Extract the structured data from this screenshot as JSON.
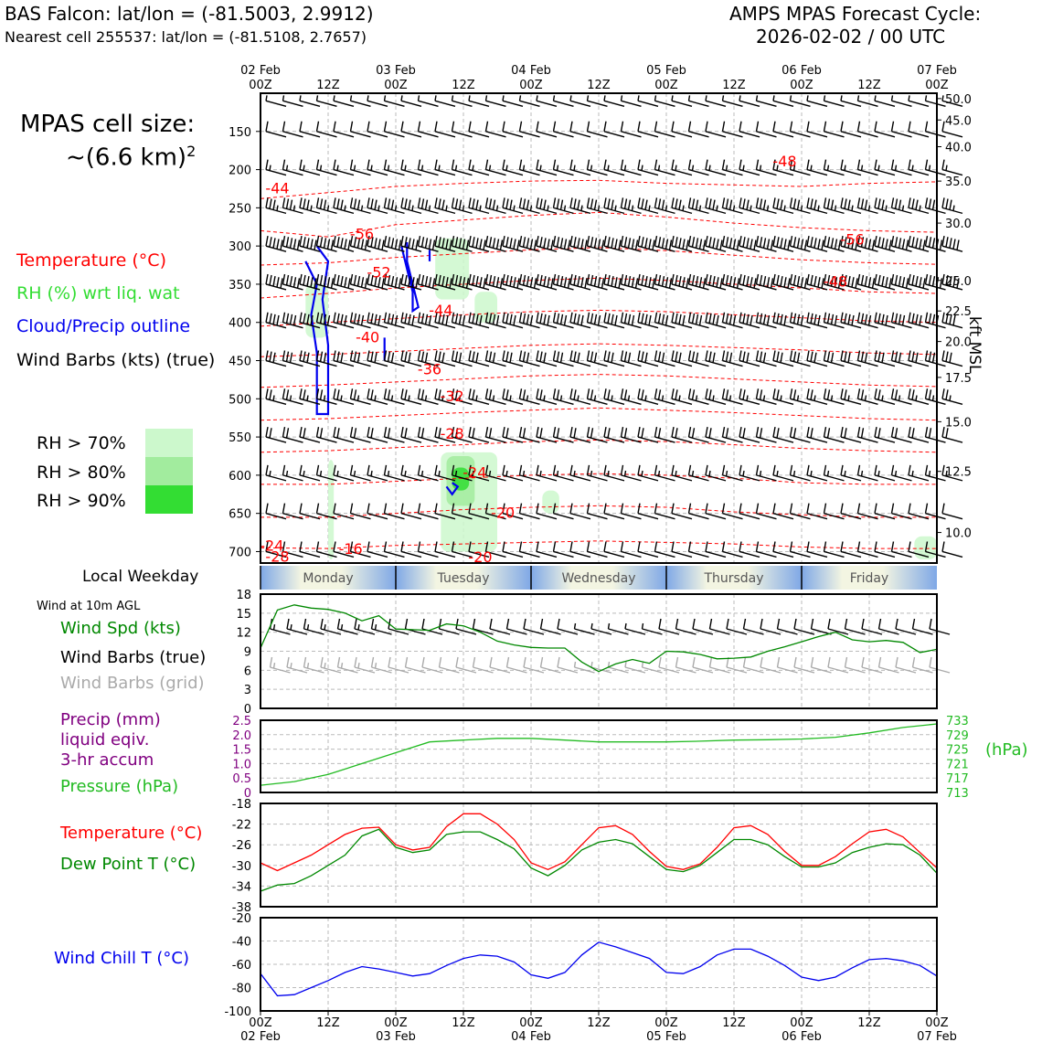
{
  "header": {
    "station_line": "BAS Falcon: lat/lon = (-81.5003, 2.9912)",
    "nearest_line": "Nearest cell 255537: lat/lon = (-81.5108, 2.7657)",
    "cycle_line1": "AMPS MPAS Forecast Cycle:",
    "cycle_line2": "2026-02-02 / 00 UTC"
  },
  "cell_size": {
    "line1": "MPAS cell size:",
    "line2": "~(6.6 km)",
    "sup": "2"
  },
  "legend": {
    "temperature": {
      "label": "Temperature (°C)",
      "color": "#ff0000"
    },
    "rh": {
      "label": "RH (%) wrt liq. wat",
      "color": "#33dd33"
    },
    "cloud": {
      "label": "Cloud/Precip outline",
      "color": "#0000ee"
    },
    "wind": {
      "label": "Wind Barbs (kts) (true)",
      "color": "#000000"
    },
    "rh70": {
      "label": "RH > 70%",
      "color": "#ccf8cc"
    },
    "rh80": {
      "label": "RH > 80%",
      "color": "#a2ec9e"
    },
    "rh90": {
      "label": "RH > 90%",
      "color": "#33dd33"
    }
  },
  "local_weekday_label": "Local Weekday",
  "days": [
    "Monday",
    "Tuesday",
    "Wednesday",
    "Thursday",
    "Friday"
  ],
  "wind10m": {
    "title": "Wind at 10m AGL",
    "spd_label": "Wind Spd (kts)",
    "barbs_true_label": "Wind Barbs (true)",
    "barbs_grid_label": "Wind Barbs (grid)"
  },
  "precip_panel": {
    "precip_label1": "Precip (mm)",
    "precip_label2": "liquid eqiv.",
    "precip_label3": "3-hr accum",
    "pressure_label": "Pressure (hPa)",
    "hpa_unit": "(hPa)"
  },
  "temp_panel": {
    "temp_label": "Temperature (°C)",
    "dew_label": "Dew Point T (°C)"
  },
  "chill_panel": {
    "label": "Wind Chill T (°C)"
  },
  "chart_data": [
    {
      "id": "cross_section",
      "type": "heatmap",
      "x_hours": [
        0,
        120
      ],
      "ylabel_right": "kft MSL",
      "pressure_ticks": [
        "150",
        "200",
        "250",
        "300",
        "350",
        "400",
        "450",
        "500",
        "550",
        "600",
        "650",
        "700"
      ],
      "pressure_levels": [
        150,
        200,
        250,
        300,
        350,
        400,
        450,
        500,
        550,
        600,
        650,
        700
      ],
      "kft_ticks": [
        "50.0",
        "45.0",
        "40.0",
        "35.0",
        "30.0",
        "25.0",
        "22.5",
        "20.0",
        "17.5",
        "15.0",
        "12.5",
        "10.0"
      ],
      "kft_pressure": [
        107,
        135,
        170,
        215,
        270,
        345,
        385,
        425,
        472,
        530,
        595,
        675
      ],
      "time_ticks_top_date": [
        "02 Feb",
        "",
        "03 Feb",
        "",
        "04 Feb",
        "",
        "05 Feb",
        "",
        "06 Feb",
        "",
        "07 Feb"
      ],
      "time_ticks_top_hour": [
        "00Z",
        "12Z",
        "00Z",
        "12Z",
        "00Z",
        "12Z",
        "00Z",
        "12Z",
        "00Z",
        "12Z",
        "00Z"
      ],
      "temperature_labels": [
        {
          "text": "-44",
          "t": 3,
          "p": 225
        },
        {
          "text": "-48",
          "t": 93,
          "p": 190
        },
        {
          "text": "-56",
          "t": 18,
          "p": 285
        },
        {
          "text": "-56",
          "t": 105,
          "p": 292
        },
        {
          "text": "-52",
          "t": 21,
          "p": 335
        },
        {
          "text": "-48",
          "t": 102,
          "p": 347
        },
        {
          "text": "-44",
          "t": 32,
          "p": 385
        },
        {
          "text": "-40",
          "t": 19,
          "p": 420
        },
        {
          "text": "-36",
          "t": 30,
          "p": 462
        },
        {
          "text": "-32",
          "t": 34,
          "p": 497
        },
        {
          "text": "-28",
          "t": 34,
          "p": 546
        },
        {
          "text": "-24",
          "t": 38,
          "p": 597
        },
        {
          "text": "-20",
          "t": 43,
          "p": 650
        },
        {
          "text": "-16",
          "t": 16,
          "p": 697
        },
        {
          "text": "-24",
          "t": 2,
          "p": 693
        },
        {
          "text": "-28",
          "t": 3,
          "p": 707
        },
        {
          "text": "-20",
          "t": 39,
          "p": 708
        }
      ],
      "temperature_contours_p_at_t": {
        "t": [
          0,
          12,
          24,
          36,
          48,
          60,
          72,
          84,
          96,
          108,
          120
        ],
        "lines": [
          [
            238,
            230,
            222,
            218,
            215,
            214,
            218,
            220,
            222,
            218,
            216
          ],
          [
            280,
            288,
            272,
            266,
            260,
            256,
            262,
            270,
            276,
            280,
            282
          ],
          [
            325,
            322,
            315,
            310,
            305,
            302,
            306,
            312,
            318,
            322,
            324
          ],
          [
            368,
            362,
            355,
            350,
            345,
            342,
            345,
            350,
            355,
            360,
            362
          ],
          [
            405,
            400,
            395,
            390,
            386,
            384,
            386,
            390,
            394,
            398,
            400
          ],
          [
            445,
            442,
            438,
            434,
            430,
            428,
            430,
            433,
            436,
            440,
            442
          ],
          [
            485,
            482,
            478,
            474,
            470,
            468,
            470,
            474,
            478,
            482,
            484
          ],
          [
            528,
            526,
            522,
            518,
            515,
            512,
            515,
            518,
            522,
            526,
            528
          ],
          [
            570,
            568,
            564,
            560,
            556,
            554,
            556,
            560,
            565,
            568,
            570
          ],
          [
            612,
            612,
            608,
            604,
            600,
            598,
            600,
            604,
            610,
            612,
            612
          ],
          [
            655,
            655,
            650,
            645,
            642,
            640,
            642,
            648,
            652,
            655,
            655
          ],
          [
            695,
            696,
            692,
            690,
            688,
            686,
            688,
            690,
            694,
            696,
            696
          ]
        ]
      },
      "rh_patches": [
        {
          "level": 70,
          "t0": 31,
          "t1": 37,
          "p0": 290,
          "p1": 370
        },
        {
          "level": 70,
          "t0": 38,
          "t1": 42,
          "p0": 360,
          "p1": 400
        },
        {
          "level": 70,
          "t0": 12,
          "t1": 13,
          "p0": 580,
          "p1": 710
        },
        {
          "level": 70,
          "t0": 8,
          "t1": 12,
          "p0": 350,
          "p1": 420
        },
        {
          "level": 70,
          "t0": 32,
          "t1": 42,
          "p0": 570,
          "p1": 700
        },
        {
          "level": 80,
          "t0": 33,
          "t1": 38,
          "p0": 575,
          "p1": 640
        },
        {
          "level": 90,
          "t0": 34,
          "t1": 37,
          "p0": 590,
          "p1": 620
        },
        {
          "level": 70,
          "t0": 50,
          "t1": 53,
          "p0": 620,
          "p1": 650
        },
        {
          "level": 70,
          "t0": 116,
          "t1": 120,
          "p0": 680,
          "p1": 710
        }
      ],
      "cloud_outlines": [
        {
          "points": [
            [
              8,
              320
            ],
            [
              10,
              350
            ],
            [
              9,
              390
            ],
            [
              10,
              440
            ],
            [
              10,
              520
            ],
            [
              12,
              520
            ],
            [
              12,
              430
            ],
            [
              11,
              370
            ],
            [
              12,
              320
            ],
            [
              10,
              300
            ]
          ]
        },
        {
          "points": [
            [
              25,
              300
            ],
            [
              26,
              330
            ],
            [
              27,
              360
            ],
            [
              27,
              385
            ],
            [
              28,
              380
            ],
            [
              27,
              350
            ],
            [
              26,
              320
            ],
            [
              26,
              295
            ]
          ]
        },
        {
          "points": [
            [
              34,
              610
            ],
            [
              35,
              615
            ],
            [
              34,
              625
            ],
            [
              33,
              615
            ]
          ]
        },
        {
          "points": [
            [
              22,
              420
            ],
            [
              22,
              450
            ]
          ]
        },
        {
          "points": [
            [
              30,
              305
            ],
            [
              30,
              320
            ]
          ]
        }
      ],
      "barb_levels": [
        110,
        150,
        200,
        250,
        300,
        350,
        400,
        450,
        500,
        550,
        600,
        650,
        700
      ],
      "barb_speed_by_level": [
        5,
        10,
        15,
        35,
        55,
        50,
        40,
        30,
        25,
        20,
        15,
        10,
        10
      ],
      "barb_dir_by_level": [
        280,
        285,
        280,
        270,
        265,
        265,
        265,
        265,
        270,
        270,
        275,
        280,
        300
      ]
    },
    {
      "id": "wind10m",
      "type": "line",
      "ylim": [
        0,
        18
      ],
      "yticks": [
        "0",
        "3",
        "6",
        "9",
        "12",
        "15",
        "18"
      ],
      "x_hours": [
        0,
        3,
        6,
        9,
        12,
        15,
        18,
        21,
        24,
        27,
        30,
        33,
        36,
        39,
        42,
        45,
        48,
        51,
        54,
        57,
        60,
        63,
        66,
        69,
        72,
        75,
        78,
        81,
        84,
        87,
        90,
        93,
        96,
        99,
        102,
        105,
        108,
        111,
        114,
        117,
        120
      ],
      "series": [
        {
          "name": "Wind Spd (kts)",
          "color": "#008800",
          "values": [
            9.5,
            15.5,
            16.3,
            15.8,
            15.6,
            15.0,
            13.8,
            14.6,
            12.5,
            12.4,
            12.3,
            13.3,
            13.0,
            12.0,
            10.6,
            10.0,
            9.6,
            9.5,
            9.5,
            7.3,
            5.8,
            7.0,
            7.7,
            7.1,
            9.0,
            8.9,
            8.5,
            7.8,
            7.9,
            8.1,
            9.0,
            9.7,
            10.5,
            11.3,
            12.0,
            10.8,
            10.5,
            10.7,
            10.4,
            8.8,
            9.3
          ]
        }
      ],
      "barb_speed_true": [
        10,
        15,
        15,
        15,
        15,
        15,
        15,
        15,
        10,
        10,
        10,
        10,
        10,
        10,
        10,
        10,
        10,
        10,
        10,
        5,
        5,
        5,
        5,
        5,
        10,
        10,
        10,
        10,
        10,
        10,
        10,
        10,
        10,
        10,
        10,
        10,
        10,
        10,
        10,
        10,
        10
      ],
      "barb_speed_grid": [
        10,
        15,
        15,
        15,
        15,
        15,
        15,
        15,
        10,
        10,
        10,
        10,
        10,
        10,
        10,
        10,
        10,
        10,
        10,
        5,
        5,
        5,
        5,
        5,
        10,
        10,
        10,
        10,
        10,
        10,
        10,
        10,
        10,
        10,
        10,
        10,
        10,
        10,
        10,
        10,
        10
      ]
    },
    {
      "id": "precip_pressure",
      "type": "line",
      "ylim_left": [
        0,
        2.5
      ],
      "yticks_left": [
        "0",
        "0.5",
        "1.0",
        "1.5",
        "2.0",
        "2.5"
      ],
      "ylim_right": [
        713,
        733
      ],
      "yticks_right": [
        "713",
        "717",
        "721",
        "725",
        "729",
        "733"
      ],
      "x_hours": [
        0,
        6,
        12,
        18,
        24,
        30,
        36,
        42,
        48,
        54,
        60,
        66,
        72,
        78,
        84,
        90,
        96,
        102,
        108,
        114,
        120
      ],
      "series": [
        {
          "name": "Pressure (hPa)",
          "color": "#22bb22",
          "values": [
            715,
            716,
            718,
            721,
            724,
            727,
            727.5,
            728,
            728,
            727.5,
            727,
            727,
            727,
            727.2,
            727.5,
            727.6,
            727.8,
            728.3,
            729.5,
            731,
            732
          ]
        }
      ]
    },
    {
      "id": "temperature",
      "type": "line",
      "ylim": [
        -38,
        -18
      ],
      "yticks": [
        "-18",
        "-22",
        "-26",
        "-30",
        "-34",
        "-38"
      ],
      "x_hours": [
        0,
        3,
        6,
        9,
        12,
        15,
        18,
        21,
        24,
        27,
        30,
        33,
        36,
        39,
        42,
        45,
        48,
        51,
        54,
        57,
        60,
        63,
        66,
        69,
        72,
        75,
        78,
        81,
        84,
        87,
        90,
        93,
        96,
        99,
        102,
        105,
        108,
        111,
        114,
        117,
        120
      ],
      "series": [
        {
          "name": "Temperature (°C)",
          "color": "#ff0000",
          "values": [
            -29.5,
            -31.0,
            -29.5,
            -28.0,
            -26.0,
            -24.0,
            -22.8,
            -22.6,
            -26.0,
            -27.0,
            -26.5,
            -22.5,
            -20.0,
            -20.0,
            -22.0,
            -25.0,
            -29.5,
            -30.8,
            -29.3,
            -26.0,
            -22.7,
            -22.3,
            -24.0,
            -27.3,
            -30.2,
            -30.8,
            -29.7,
            -26.5,
            -22.7,
            -22.3,
            -24.0,
            -27.3,
            -30.0,
            -30.0,
            -28.3,
            -25.8,
            -23.5,
            -23.0,
            -24.5,
            -27.5,
            -30.5
          ]
        },
        {
          "name": "Dew Point T (°C)",
          "color": "#008800",
          "values": [
            -35.0,
            -33.8,
            -33.5,
            -32.0,
            -30.0,
            -28.0,
            -24.3,
            -23.0,
            -26.5,
            -27.5,
            -27.0,
            -24.0,
            -23.5,
            -23.5,
            -25.0,
            -26.8,
            -30.5,
            -32.0,
            -30.0,
            -27.0,
            -25.5,
            -25.0,
            -25.8,
            -28.3,
            -30.8,
            -31.2,
            -30.0,
            -27.5,
            -25.0,
            -25.0,
            -26.0,
            -28.3,
            -30.3,
            -30.3,
            -29.5,
            -27.5,
            -26.5,
            -25.8,
            -26.0,
            -28.0,
            -31.5
          ]
        }
      ]
    },
    {
      "id": "wind_chill",
      "type": "line",
      "ylim": [
        -100,
        -20
      ],
      "yticks": [
        "-20",
        "-40",
        "-60",
        "-80",
        "-100"
      ],
      "xticks_hour": [
        "00Z",
        "12Z",
        "00Z",
        "12Z",
        "00Z",
        "12Z",
        "00Z",
        "12Z",
        "00Z",
        "12Z",
        "00Z"
      ],
      "xticks_date": [
        "02 Feb",
        "",
        "03 Feb",
        "",
        "04 Feb",
        "",
        "05 Feb",
        "",
        "06 Feb",
        "",
        "07 Feb"
      ],
      "x_hours": [
        0,
        3,
        6,
        9,
        12,
        15,
        18,
        21,
        24,
        27,
        30,
        33,
        36,
        39,
        42,
        45,
        48,
        51,
        54,
        57,
        60,
        63,
        66,
        69,
        72,
        75,
        78,
        81,
        84,
        87,
        90,
        93,
        96,
        99,
        102,
        105,
        108,
        111,
        114,
        117,
        120
      ],
      "series": [
        {
          "name": "Wind Chill T (°C)",
          "color": "#0000ee",
          "values": [
            -68,
            -87,
            -86,
            -80,
            -74,
            -67,
            -62,
            -64,
            -67,
            -70,
            -68,
            -61,
            -55,
            -52,
            -53,
            -58,
            -69,
            -72,
            -67,
            -52,
            -41,
            -45,
            -50,
            -55,
            -67,
            -68,
            -62,
            -52,
            -47,
            -47,
            -53,
            -61,
            -71,
            -74,
            -71,
            -63,
            -56,
            -55,
            -57,
            -61,
            -70
          ]
        }
      ]
    }
  ]
}
